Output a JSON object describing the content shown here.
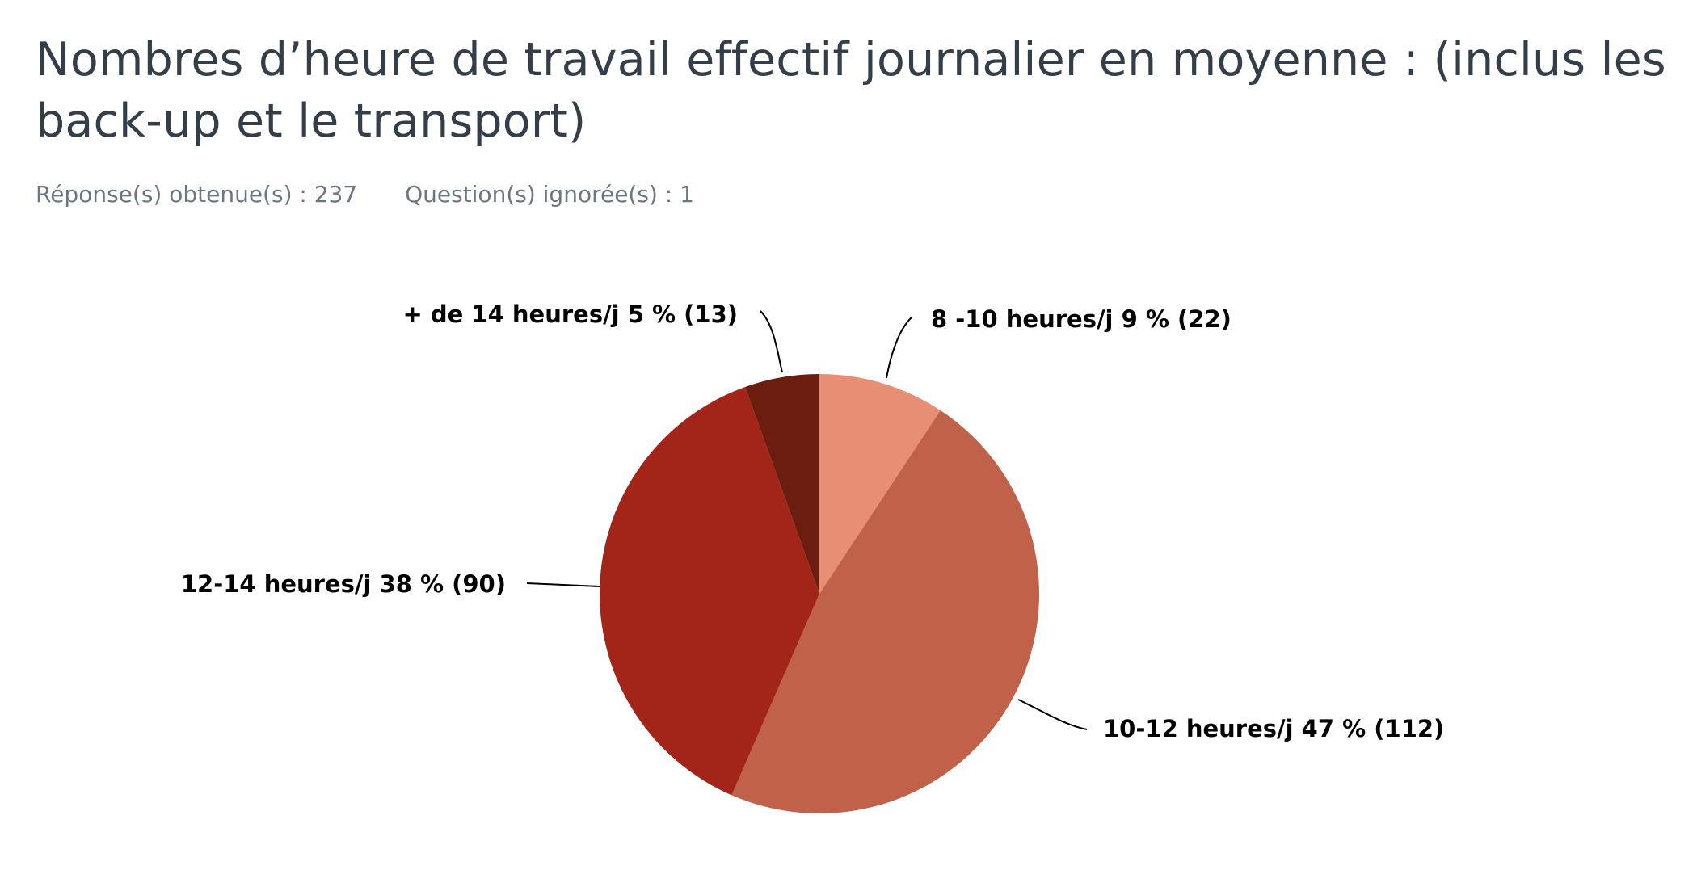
{
  "question": {
    "title": "Nombres d’heure de travail effectif journalier en moyenne : (inclus les back-up et le transport)",
    "answered": "Réponse(s) obtenue(s) : 237",
    "skipped": "Question(s) ignorée(s) : 1"
  },
  "chart_data": {
    "type": "pie",
    "title": "Nombres d’heure de travail effectif journalier en moyenne : (inclus les back-up et le transport)",
    "start_angle": 0,
    "direction": "clockwise",
    "slices": [
      {
        "label": "8 -10 heures/j",
        "percent": 9,
        "count": 22,
        "text": "8 -10 heures/j 9 % (22)",
        "color": "#e88e75"
      },
      {
        "label": "10-12 heures/j",
        "percent": 47,
        "count": 112,
        "text": "10-12 heures/j 47 % (112)",
        "color": "#c0624a"
      },
      {
        "label": "12-14 heures/j",
        "percent": 38,
        "count": 90,
        "text": "12-14 heures/j 38 % (90)",
        "color": "#a32418"
      },
      {
        "label": "+ de 14 heures/j",
        "percent": 5,
        "count": 13,
        "text": "+ de 14 heures/j 5 % (13)",
        "color": "#6b1e10"
      }
    ]
  }
}
